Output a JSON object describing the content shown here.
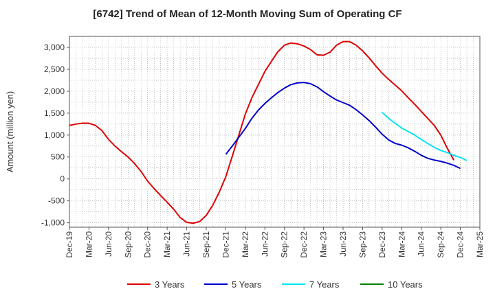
{
  "chart_data": {
    "type": "line",
    "title": "[6742]  Trend of Mean of 12-Month Moving Sum of Operating CF",
    "xlabel": "",
    "ylabel": "Amount (million yen)",
    "ylim": [
      -1100,
      3250
    ],
    "yticks": [
      -1000,
      -500,
      0,
      500,
      1000,
      1500,
      2000,
      2500,
      3000
    ],
    "ytick_labels": [
      "-1,000",
      "-500",
      "0",
      "500",
      "1,000",
      "1,500",
      "2,000",
      "2,500",
      "3,000"
    ],
    "x_categories": [
      "Dec-19",
      "Mar-20",
      "Jun-20",
      "Sep-20",
      "Dec-20",
      "Mar-21",
      "Jun-21",
      "Sep-21",
      "Dec-21",
      "Mar-22",
      "Jun-22",
      "Sep-22",
      "Dec-22",
      "Mar-23",
      "Jun-23",
      "Sep-23",
      "Dec-23",
      "Mar-24",
      "Jun-24",
      "Sep-24",
      "Dec-24",
      "Mar-25"
    ],
    "grid": true,
    "legend_position": "bottom",
    "series": [
      {
        "name": "3 Years",
        "color": "#dd0000",
        "start_index": 0,
        "values": [
          1220,
          1250,
          1270,
          1270,
          1220,
          1100,
          900,
          750,
          620,
          500,
          350,
          170,
          -50,
          -220,
          -380,
          -530,
          -690,
          -880,
          -990,
          -1010,
          -970,
          -830,
          -600,
          -300,
          50,
          520,
          1000,
          1480,
          1850,
          2150,
          2450,
          2680,
          2900,
          3050,
          3100,
          3080,
          3030,
          2950,
          2830,
          2820,
          2890,
          3050,
          3130,
          3130,
          3050,
          2920,
          2760,
          2580,
          2410,
          2270,
          2140,
          2010,
          1850,
          1700,
          1540,
          1380,
          1220,
          1000,
          700,
          430
        ]
      },
      {
        "name": "5 Years",
        "color": "#0000cc",
        "start_index": 24,
        "values": [
          560,
          750,
          950,
          1150,
          1380,
          1570,
          1720,
          1850,
          1970,
          2070,
          2150,
          2190,
          2200,
          2170,
          2100,
          1990,
          1890,
          1800,
          1740,
          1680,
          1580,
          1460,
          1330,
          1180,
          1020,
          890,
          810,
          770,
          710,
          630,
          540,
          470,
          430,
          400,
          360,
          310,
          240
        ]
      },
      {
        "name": "7 Years",
        "color": "#00e5ee",
        "start_index": 48,
        "values": [
          1520,
          1380,
          1270,
          1160,
          1080,
          1000,
          900,
          810,
          720,
          650,
          600,
          540,
          490,
          420
        ]
      },
      {
        "name": "10 Years",
        "color": "#008000",
        "start_index": 0,
        "values": []
      }
    ]
  }
}
